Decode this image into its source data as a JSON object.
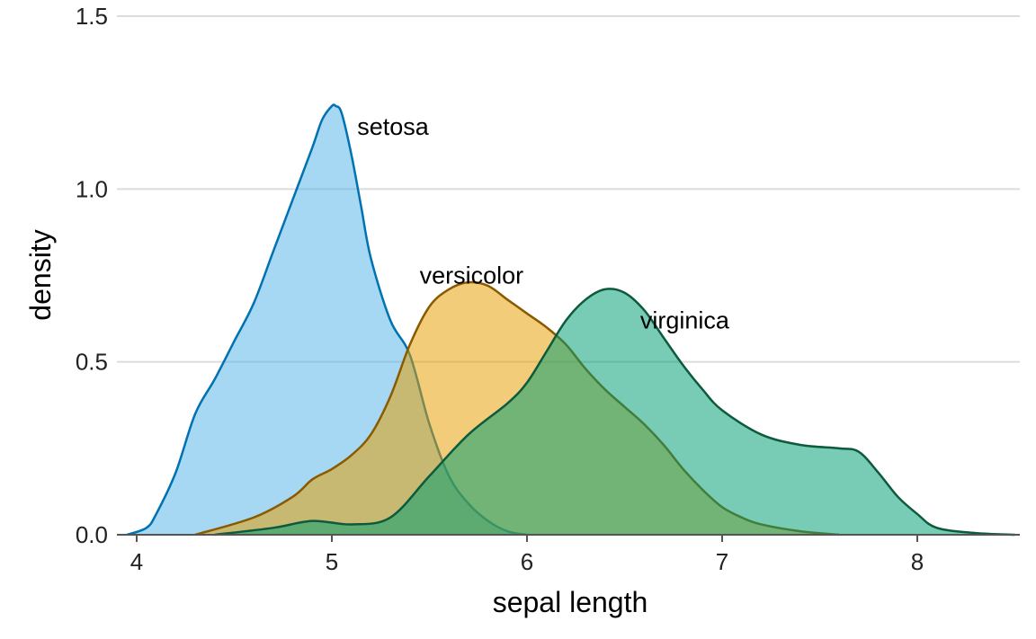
{
  "chart_data": {
    "type": "area",
    "title": "",
    "xlabel": "sepal length",
    "ylabel": "density",
    "xlim": [
      3.95,
      8.5
    ],
    "ylim": [
      0,
      1.5
    ],
    "x_ticks": [
      4,
      5,
      6,
      7,
      8
    ],
    "y_ticks": [
      0.0,
      0.5,
      1.0,
      1.5
    ],
    "x_tick_labels": [
      "4",
      "5",
      "6",
      "7",
      "8"
    ],
    "y_tick_labels": [
      "0.0",
      "0.5",
      "1.0",
      "1.5"
    ],
    "grid": "horizontal",
    "legend": "direct labels",
    "series": [
      {
        "name": "setosa",
        "fill": "#56B4E9",
        "stroke": "#0072B2",
        "label": {
          "x": 5.13,
          "y": 1.18
        },
        "x": [
          3.95,
          4.05,
          4.1,
          4.2,
          4.3,
          4.4,
          4.5,
          4.6,
          4.7,
          4.8,
          4.9,
          4.95,
          5.0,
          5.02,
          5.05,
          5.1,
          5.15,
          5.2,
          5.3,
          5.4,
          5.5,
          5.6,
          5.7,
          5.8,
          5.9,
          6.0
        ],
        "y": [
          0.0,
          0.02,
          0.06,
          0.18,
          0.35,
          0.45,
          0.56,
          0.67,
          0.82,
          0.97,
          1.12,
          1.2,
          1.24,
          1.24,
          1.22,
          1.1,
          0.95,
          0.8,
          0.62,
          0.52,
          0.32,
          0.17,
          0.09,
          0.04,
          0.01,
          0.0
        ]
      },
      {
        "name": "versicolor",
        "fill": "#E69F00",
        "stroke": "#8a5a00",
        "label": {
          "x": 5.45,
          "y": 0.75
        },
        "x": [
          4.3,
          4.6,
          4.8,
          4.9,
          5.0,
          5.1,
          5.2,
          5.3,
          5.4,
          5.5,
          5.6,
          5.7,
          5.8,
          5.9,
          6.0,
          6.1,
          6.2,
          6.3,
          6.4,
          6.5,
          6.6,
          6.7,
          6.8,
          6.9,
          7.0,
          7.1,
          7.2,
          7.4,
          7.6
        ],
        "y": [
          0.0,
          0.05,
          0.11,
          0.16,
          0.19,
          0.23,
          0.29,
          0.4,
          0.55,
          0.66,
          0.71,
          0.73,
          0.72,
          0.68,
          0.64,
          0.6,
          0.55,
          0.48,
          0.42,
          0.37,
          0.32,
          0.26,
          0.19,
          0.13,
          0.08,
          0.05,
          0.03,
          0.01,
          0.0
        ]
      },
      {
        "name": "virginica",
        "fill": "#009E73",
        "stroke": "#0e5a3c",
        "label": {
          "x": 6.58,
          "y": 0.62
        },
        "x": [
          4.4,
          4.7,
          4.9,
          5.1,
          5.3,
          5.5,
          5.7,
          5.9,
          6.0,
          6.1,
          6.2,
          6.3,
          6.4,
          6.5,
          6.6,
          6.7,
          6.8,
          6.9,
          7.0,
          7.2,
          7.4,
          7.6,
          7.7,
          7.8,
          7.9,
          8.0,
          8.1,
          8.3,
          8.5
        ],
        "y": [
          0.0,
          0.02,
          0.04,
          0.03,
          0.05,
          0.17,
          0.29,
          0.38,
          0.44,
          0.53,
          0.62,
          0.68,
          0.71,
          0.7,
          0.65,
          0.57,
          0.49,
          0.42,
          0.36,
          0.29,
          0.26,
          0.25,
          0.24,
          0.18,
          0.11,
          0.06,
          0.02,
          0.005,
          0.0
        ]
      }
    ]
  }
}
